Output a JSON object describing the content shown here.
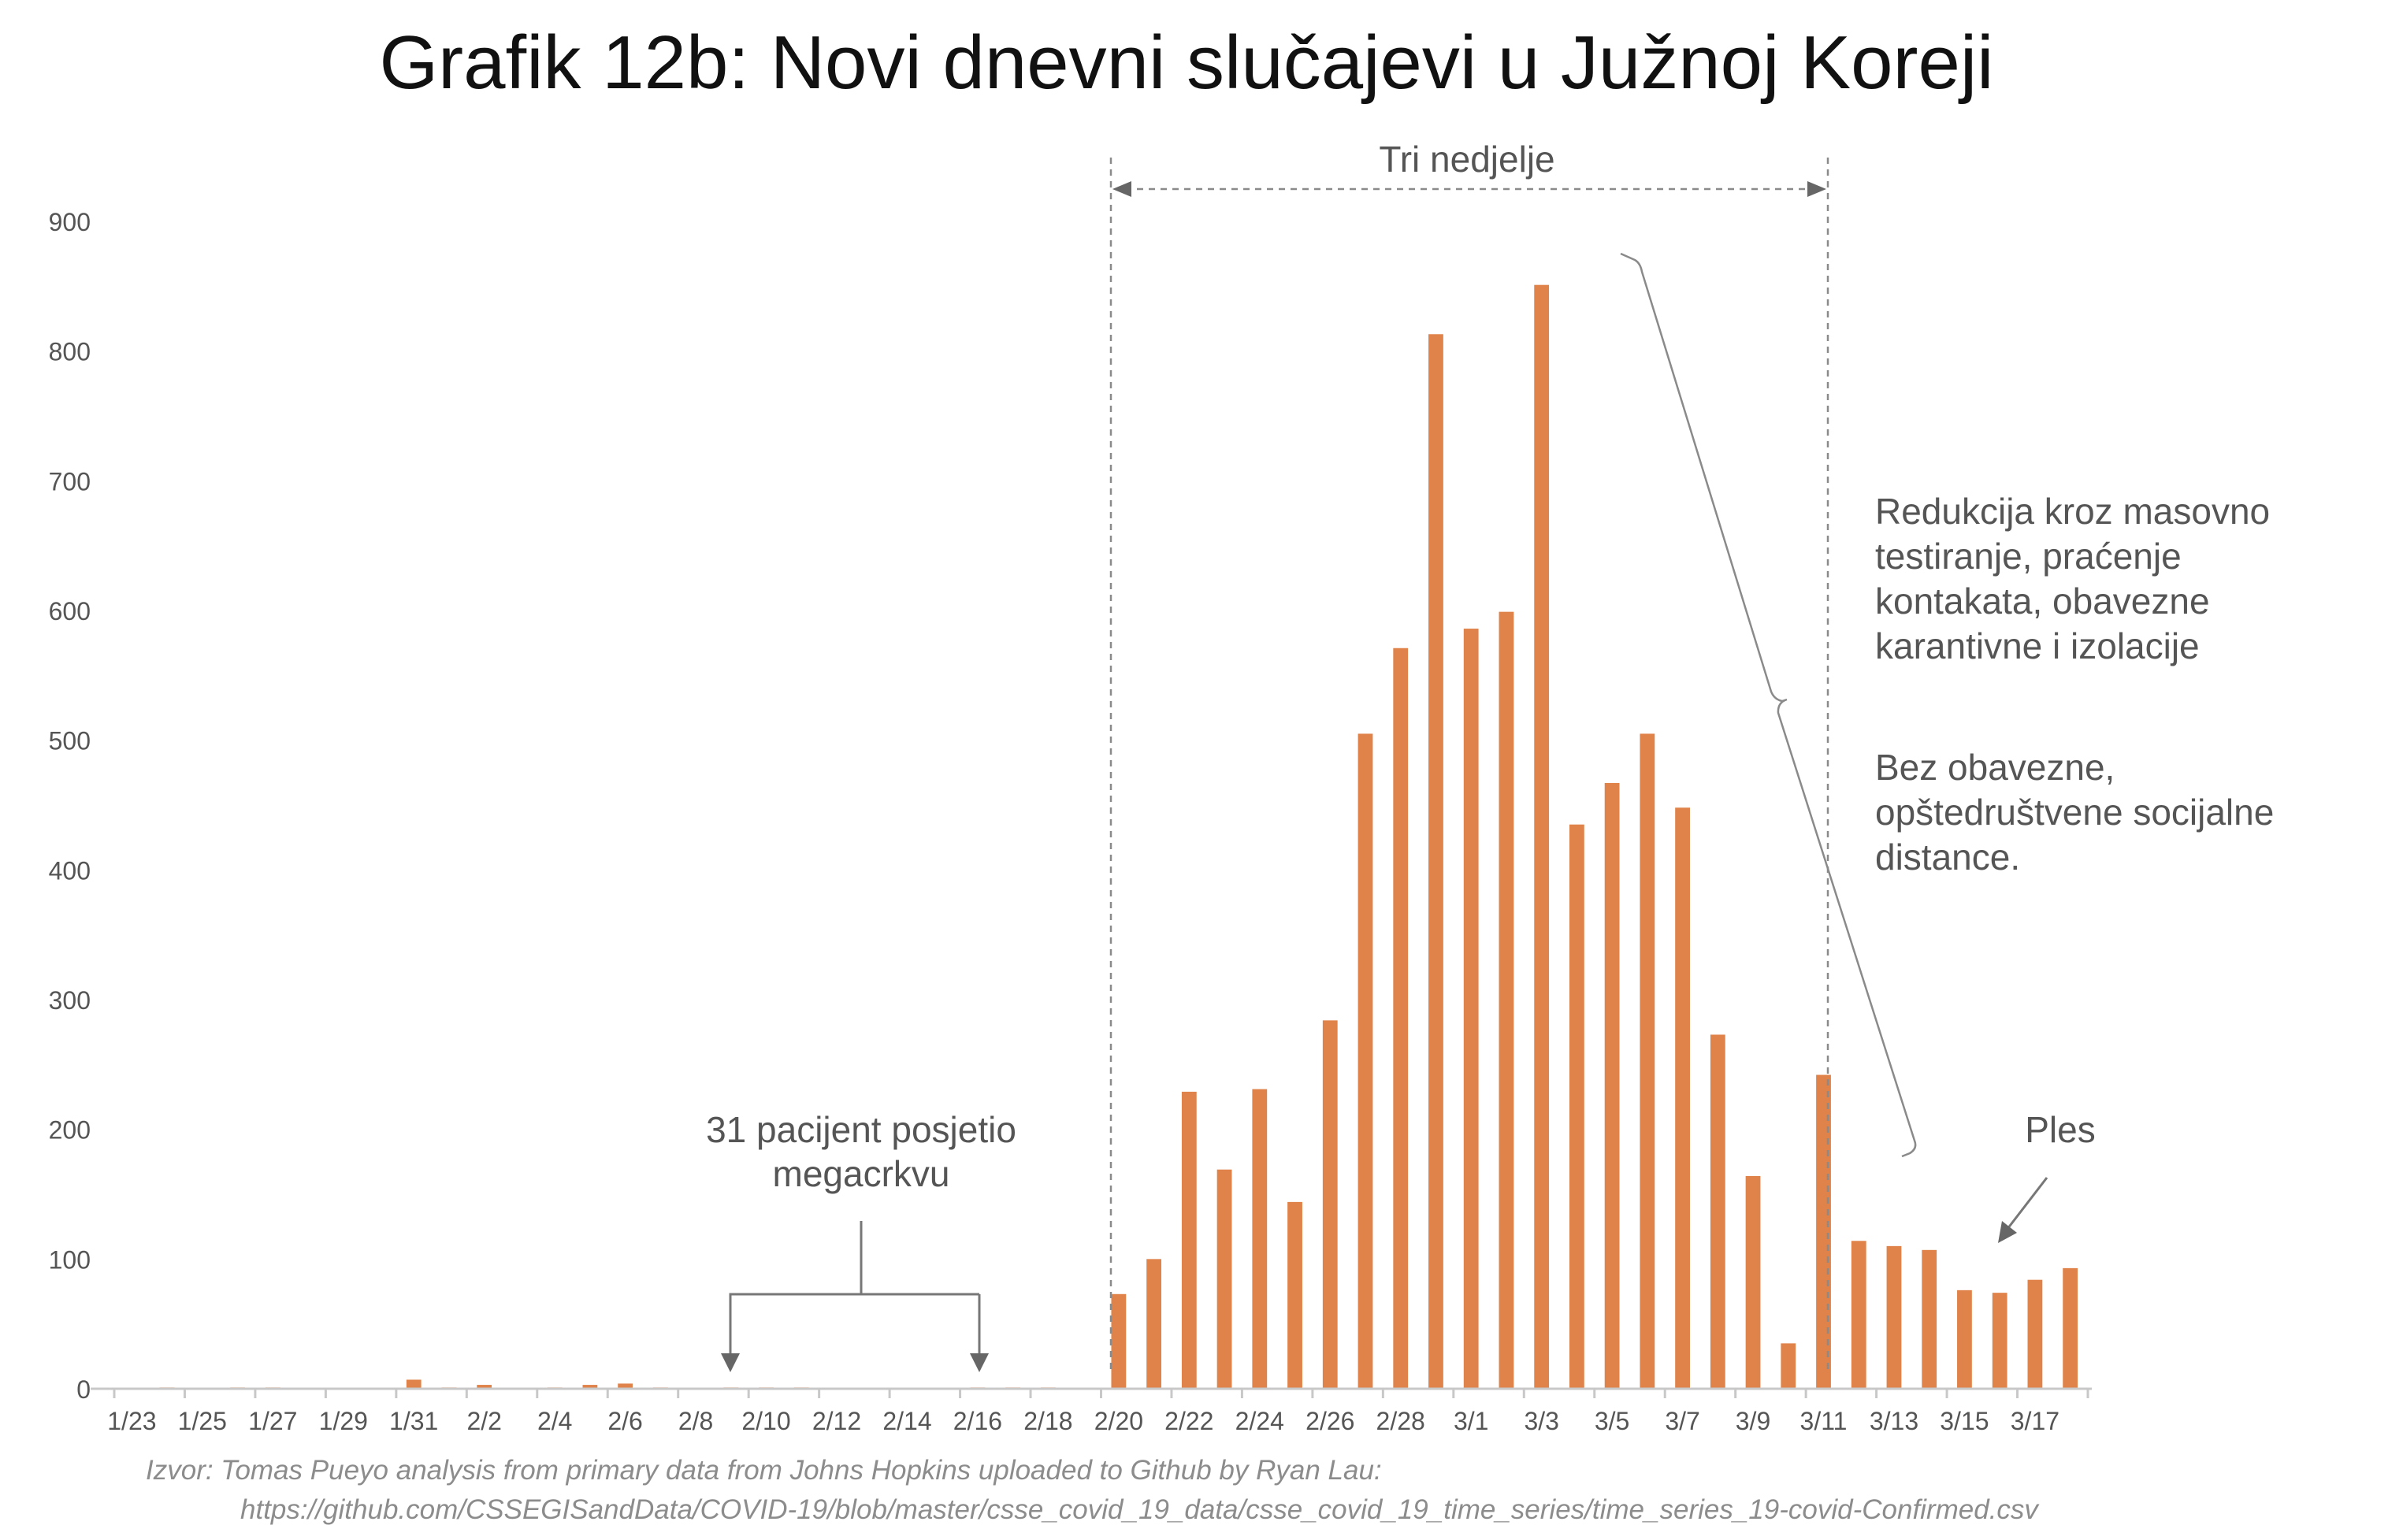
{
  "chart_data": {
    "type": "bar",
    "title": "Grafik 12b: Novi dnevni slučajevi u Južnoj Koreji",
    "xlabel": "",
    "ylabel": "",
    "ylim": [
      0,
      900
    ],
    "yticks": [
      0,
      100,
      200,
      300,
      400,
      500,
      600,
      700,
      800,
      900
    ],
    "xtick_labels": [
      "1/23",
      "1/25",
      "1/27",
      "1/29",
      "1/31",
      "2/2",
      "2/4",
      "2/6",
      "2/8",
      "2/10",
      "2/12",
      "2/14",
      "2/16",
      "2/18",
      "2/20",
      "2/22",
      "2/24",
      "2/26",
      "2/28",
      "3/1",
      "3/3",
      "3/5",
      "3/7",
      "3/9",
      "3/11",
      "3/13",
      "3/15",
      "3/17"
    ],
    "categories": [
      "1/23",
      "1/24",
      "1/25",
      "1/26",
      "1/27",
      "1/28",
      "1/29",
      "1/30",
      "1/31",
      "2/1",
      "2/2",
      "2/3",
      "2/4",
      "2/5",
      "2/6",
      "2/7",
      "2/8",
      "2/9",
      "2/10",
      "2/11",
      "2/12",
      "2/13",
      "2/14",
      "2/15",
      "2/16",
      "2/17",
      "2/18",
      "2/19",
      "2/20",
      "2/21",
      "2/22",
      "2/23",
      "2/24",
      "2/25",
      "2/26",
      "2/27",
      "2/28",
      "2/29",
      "3/1",
      "3/2",
      "3/3",
      "3/4",
      "3/5",
      "3/6",
      "3/7",
      "3/8",
      "3/9",
      "3/10",
      "3/11",
      "3/12",
      "3/13",
      "3/14",
      "3/15",
      "3/16",
      "3/17",
      "3/18"
    ],
    "series": [
      {
        "name": "Novi dnevni slučajevi",
        "color": "#E0834A",
        "values": [
          0,
          1,
          0,
          1,
          1,
          0,
          0,
          0,
          7,
          1,
          3,
          0,
          1,
          3,
          4,
          1,
          0,
          1,
          1,
          1,
          0,
          0,
          0,
          0,
          1,
          1,
          1,
          0,
          73,
          100,
          229,
          169,
          231,
          144,
          284,
          505,
          571,
          813,
          586,
          599,
          851,
          435,
          467,
          505,
          448,
          273,
          164,
          35,
          242,
          114,
          110,
          107,
          76,
          74,
          84,
          93
        ]
      }
    ],
    "annotations": {
      "three_weeks": "Tri nedjelje",
      "patient31_line1": "31 pacijent posjetio",
      "patient31_line2": "megacrkvu",
      "reduction_line1": "Redukcija kroz masovno",
      "reduction_line2": "testiranje, praćenje",
      "reduction_line3": "kontakata, obavezne",
      "reduction_line4": "karantivne i izolacije",
      "nodistance_line1": "Bez obavezne,",
      "nodistance_line2": "opštedruštvene socijalne",
      "nodistance_line3": "distance.",
      "dance": "Ples"
    },
    "source_line1": "Izvor: Tomas Pueyo analysis from primary data from Johns Hopkins uploaded to Github by Ryan Lau:",
    "source_line2": "https://github.com/CSSEGISandData/COVID-19/blob/master/csse_covid_19_data/csse_covid_19_time_series/time_series_19-covid-Confirmed.csv"
  }
}
